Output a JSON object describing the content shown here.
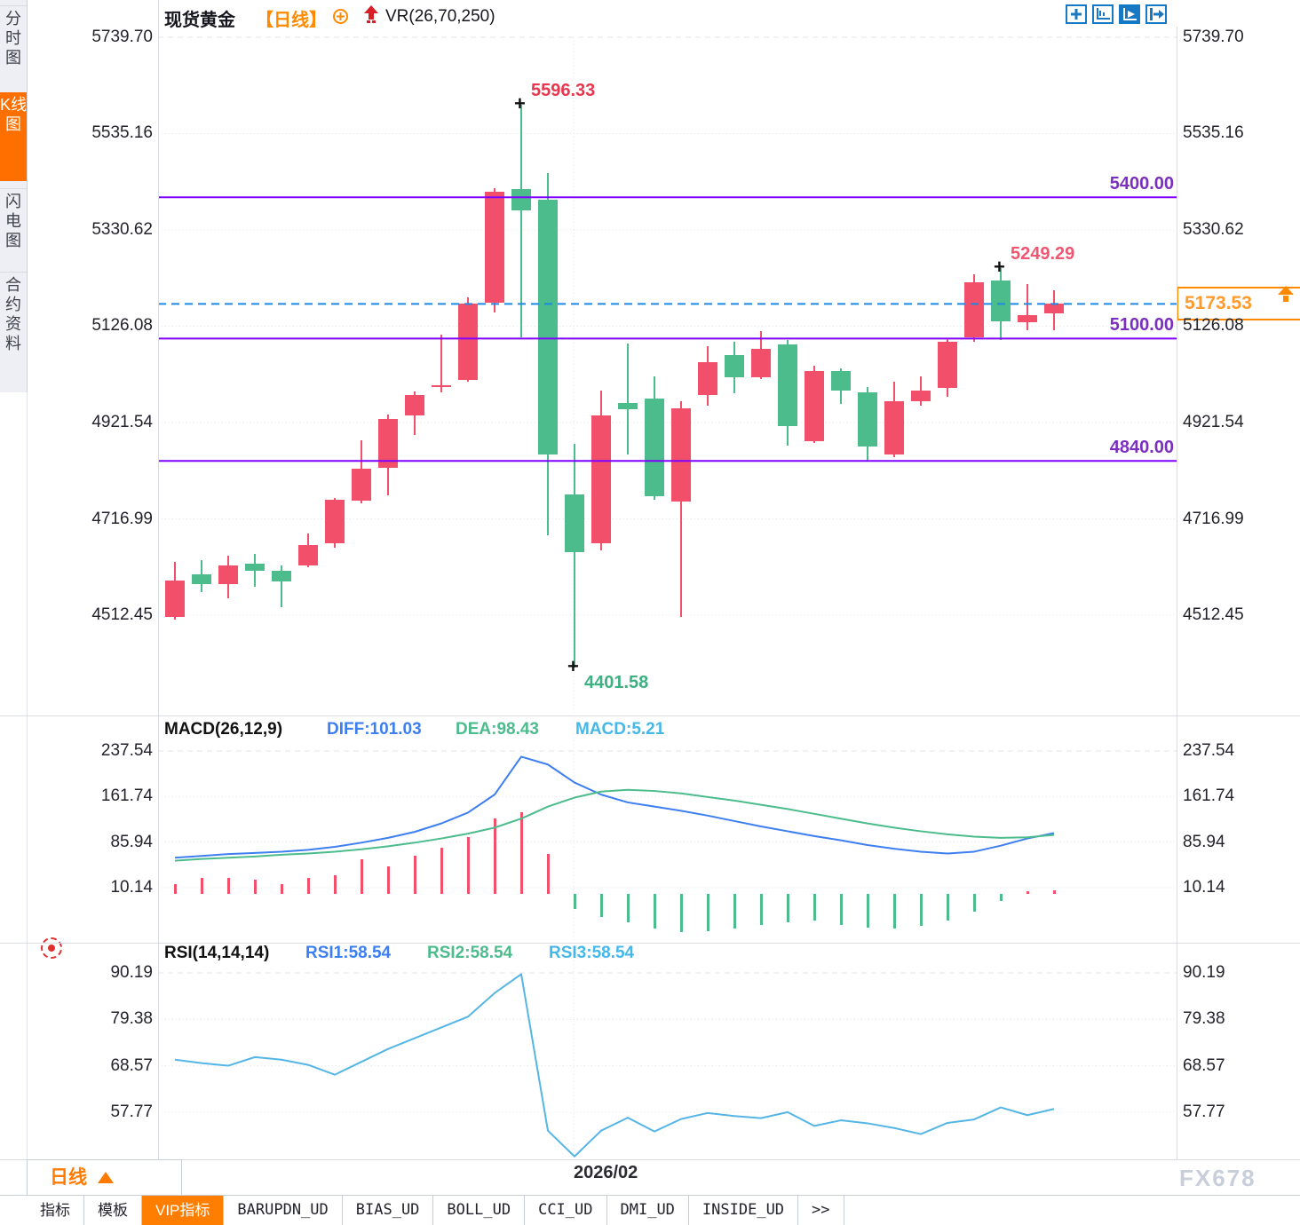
{
  "app": {
    "symbol": "现货黄金",
    "period_tag": "【日线】",
    "overlay_label": "VR(26,70,250)"
  },
  "sidebar": {
    "items": [
      {
        "label": "分时图",
        "active": false
      },
      {
        "label": "K线图",
        "active": true
      },
      {
        "label": "闪电图",
        "active": false
      },
      {
        "label": "合约资料",
        "active": false
      }
    ]
  },
  "toolbar": {
    "icons": [
      "pan-icon",
      "axis-zoom-icon",
      "chart-pointer-icon",
      "pane-collapse-icon"
    ]
  },
  "colors": {
    "up": "#f2506a",
    "down": "#4cbc8d",
    "level_line": "#8000ff",
    "level_text": "#7b2fbf",
    "dashed_price": "#1e88e5",
    "accent_orange": "#ff8a00",
    "diff_line": "#3d7ef0",
    "dea_line": "#4cbc8d",
    "macd_value": "#45b8e8",
    "rsi_line": "#55b5e5"
  },
  "chart_data": {
    "type": "candlestick",
    "title": "现货黄金 日线 K线图 with VR(26,70,250), MACD(26,12,9), RSI(14,14,14)",
    "y_axis_ticks": [
      "5739.70",
      "5535.16",
      "5330.62",
      "5126.08",
      "4921.54",
      "4716.99",
      "4512.45"
    ],
    "candles_ohlc": [
      [
        4509,
        4626,
        4503,
        4586
      ],
      [
        4599,
        4629,
        4561,
        4578
      ],
      [
        4578,
        4639,
        4548,
        4618
      ],
      [
        4621,
        4642,
        4572,
        4606
      ],
      [
        4606,
        4618,
        4529,
        4584
      ],
      [
        4618,
        4686,
        4614,
        4661
      ],
      [
        4665,
        4761,
        4655,
        4758
      ],
      [
        4756,
        4884,
        4750,
        4823
      ],
      [
        4825,
        4938,
        4767,
        4929
      ],
      [
        4937,
        4988,
        4895,
        4980
      ],
      [
        4999,
        5108,
        4986,
        5001
      ],
      [
        5012,
        5187,
        5008,
        5174
      ],
      [
        5176,
        5419,
        5155,
        5412
      ],
      [
        5417,
        5596.33,
        5103,
        5372
      ],
      [
        5395,
        5451,
        4682,
        4854
      ],
      [
        4769,
        4876,
        4401.58,
        4646
      ],
      [
        4665,
        4989,
        4650,
        4937
      ],
      [
        4963,
        5089,
        4854,
        4950
      ],
      [
        4972,
        5020,
        4758,
        4765
      ],
      [
        4754,
        4967,
        4508,
        4952
      ],
      [
        4980,
        5084,
        4957,
        5050
      ],
      [
        5065,
        5093,
        4984,
        5018
      ],
      [
        5018,
        5116,
        5014,
        5078
      ],
      [
        5087,
        5097,
        4873,
        4914
      ],
      [
        4882,
        5042,
        4878,
        5031
      ],
      [
        5031,
        5036,
        4961,
        4989
      ],
      [
        4986,
        4997,
        4839,
        4871
      ],
      [
        4854,
        5008,
        4848,
        4967
      ],
      [
        4967,
        5020,
        4957,
        4990
      ],
      [
        4995,
        5099,
        4976,
        5093
      ],
      [
        5102,
        5236,
        5093,
        5219
      ],
      [
        5223,
        5249.29,
        5097,
        5136
      ],
      [
        5134,
        5216,
        5117,
        5150
      ],
      [
        5153,
        5202,
        5117,
        5173.53
      ]
    ],
    "levels": [
      {
        "label": "5400.00",
        "value": 5400.0
      },
      {
        "label": "5100.00",
        "value": 5100.0
      },
      {
        "label": "4840.00",
        "value": 4840.0
      }
    ],
    "current_price": {
      "label": "5173.53",
      "value": 5173.53
    },
    "annotations": [
      {
        "text": "5596.33",
        "candle": 13,
        "at": "high",
        "color": "#e8374e"
      },
      {
        "text": "4401.58",
        "candle": 15,
        "at": "low",
        "color": "#3eb081"
      },
      {
        "text": "5249.29",
        "candle": 31,
        "at": "high",
        "color": "#ef5672"
      }
    ],
    "x_label": "2026/02",
    "macd": {
      "title": "MACD(26,12,9)",
      "diff_label": "DIFF:101.03",
      "dea_label": "DEA:98.43",
      "macd_label": "MACD:5.21",
      "ticks": [
        "237.54",
        "161.74",
        "85.94",
        "10.14"
      ],
      "hist": [
        16,
        26,
        26,
        23,
        16,
        26,
        31,
        58,
        45,
        63,
        77,
        95,
        125,
        135,
        66,
        -25,
        -38,
        -48,
        -58,
        -64,
        -62,
        -58,
        -52,
        -47,
        -44,
        -52,
        -56,
        -58,
        -54,
        -44,
        -30,
        -12,
        4,
        5
      ],
      "diff": [
        60,
        63,
        66,
        68,
        70,
        73,
        78,
        85,
        93,
        103,
        117,
        135,
        165,
        228,
        215,
        185,
        165,
        152,
        145,
        138,
        130,
        121,
        112,
        104,
        96,
        89,
        81,
        75,
        70,
        67,
        70,
        80,
        92,
        101
      ],
      "dea": [
        55,
        58,
        60,
        62,
        65,
        67,
        70,
        74,
        79,
        85,
        92,
        100,
        110,
        125,
        145,
        160,
        170,
        173,
        171,
        167,
        161,
        155,
        148,
        141,
        133,
        125,
        117,
        110,
        104,
        99,
        95,
        93,
        94,
        98
      ]
    },
    "rsi": {
      "title": "RSI(14,14,14)",
      "r1_label": "RSI1:58.54",
      "r2_label": "RSI2:58.54",
      "r3_label": "RSI3:58.54",
      "ticks": [
        "90.19",
        "79.38",
        "68.57",
        "57.77"
      ],
      "values": [
        70.0,
        69.2,
        68.6,
        70.6,
        70.0,
        68.8,
        66.5,
        69.5,
        72.5,
        75.0,
        77.5,
        80.0,
        85.5,
        89.9,
        53.5,
        47.5,
        53.5,
        56.5,
        53.3,
        56.2,
        57.6,
        56.9,
        56.4,
        57.8,
        54.6,
        55.9,
        55.2,
        54.1,
        52.7,
        55.3,
        56.1,
        58.9,
        57.1,
        58.54
      ]
    }
  },
  "bottom": {
    "period_label": "日线",
    "tabs": [
      {
        "label": "指标",
        "active": false
      },
      {
        "label": "模板",
        "active": false
      },
      {
        "label": "VIP指标",
        "active": true
      },
      {
        "label": "BARUPDN_UD",
        "active": false
      },
      {
        "label": "BIAS_UD",
        "active": false
      },
      {
        "label": "BOLL_UD",
        "active": false
      },
      {
        "label": "CCI_UD",
        "active": false
      },
      {
        "label": "DMI_UD",
        "active": false
      },
      {
        "label": "INSIDE_UD",
        "active": false
      },
      {
        "label": ">>",
        "active": false
      }
    ]
  },
  "watermark": "FX678"
}
